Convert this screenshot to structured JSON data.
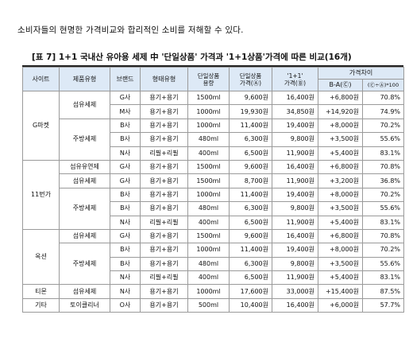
{
  "intro_text": "소비자들의 현명한 가격비교와 합리적인 소비를 저해할 수 있다.",
  "table_title": "[표 7] 1+1 국내산 유아용 세제 中 '단일상품' 가격과 '1+1상품'가격에 따른 비교(16개)",
  "headers": {
    "site": "사이트",
    "product_type": "제품유형",
    "brand": "브랜드",
    "form_type": "형태유형",
    "single_a": "단일상품",
    "single_b": "용량",
    "single_price_a": "단일상품",
    "single_price_b": "가격(Ⓐ)",
    "bundle_price_a": "'1+1'",
    "bundle_price_b": "가격(Ⓑ)",
    "diff": "가격차이",
    "diff_ba": "B-A(Ⓒ)",
    "diff_pct": "(Ⓒ÷Ⓐ)*100"
  },
  "sites": [
    "G마켓",
    "11번가",
    "옥션",
    "티몬",
    "기타"
  ],
  "product_types": [
    "섬유세제",
    "주방세제",
    "섬유유연제",
    "섬유세제",
    "주방세제",
    "섬유세제",
    "주방세제",
    "섬유세제",
    "토이클리너"
  ],
  "rows": [
    {
      "brand": "G사",
      "form": "용기+용기",
      "volume": "1500ml",
      "single": "9,600원",
      "bundle": "16,400원",
      "diff": "+6,800원",
      "pct": "70.8%"
    },
    {
      "brand": "M사",
      "form": "용기+용기",
      "volume": "1000ml",
      "single": "19,930원",
      "bundle": "34,850원",
      "diff": "+14,920원",
      "pct": "74.9%"
    },
    {
      "brand": "B사",
      "form": "용기+용기",
      "volume": "1000ml",
      "single": "11,400원",
      "bundle": "19,400원",
      "diff": "+8,000원",
      "pct": "70.2%"
    },
    {
      "brand": "B사",
      "form": "용기+용기",
      "volume": "480ml",
      "single": "6,300원",
      "bundle": "9,800원",
      "diff": "+3,500원",
      "pct": "55.6%"
    },
    {
      "brand": "N사",
      "form": "리필+리필",
      "volume": "400ml",
      "single": "6,500원",
      "bundle": "11,900원",
      "diff": "+5,400원",
      "pct": "83.1%"
    },
    {
      "brand": "G사",
      "form": "용기+용기",
      "volume": "1500ml",
      "single": "9,600원",
      "bundle": "16,400원",
      "diff": "+6,800원",
      "pct": "70.8%"
    },
    {
      "brand": "G사",
      "form": "용기+용기",
      "volume": "1500ml",
      "single": "8,700원",
      "bundle": "11,900원",
      "diff": "+3,200원",
      "pct": "36.8%"
    },
    {
      "brand": "B사",
      "form": "용기+용기",
      "volume": "1000ml",
      "single": "11,400원",
      "bundle": "19,400원",
      "diff": "+8,000원",
      "pct": "70.2%"
    },
    {
      "brand": "B사",
      "form": "용기+용기",
      "volume": "480ml",
      "single": "6,300원",
      "bundle": "9,800원",
      "diff": "+3,500원",
      "pct": "55.6%"
    },
    {
      "brand": "N사",
      "form": "리필+리필",
      "volume": "400ml",
      "single": "6,500원",
      "bundle": "11,900원",
      "diff": "+5,400원",
      "pct": "83.1%"
    },
    {
      "brand": "G사",
      "form": "용기+용기",
      "volume": "1500ml",
      "single": "9,600원",
      "bundle": "16,400원",
      "diff": "+6,800원",
      "pct": "70.8%"
    },
    {
      "brand": "B사",
      "form": "용기+용기",
      "volume": "1000ml",
      "single": "11,400원",
      "bundle": "19,400원",
      "diff": "+8,000원",
      "pct": "70.2%"
    },
    {
      "brand": "B사",
      "form": "용기+용기",
      "volume": "480ml",
      "single": "6,300원",
      "bundle": "9,800원",
      "diff": "+3,500원",
      "pct": "55.6%"
    },
    {
      "brand": "N사",
      "form": "리필+리필",
      "volume": "400ml",
      "single": "6,500원",
      "bundle": "11,900원",
      "diff": "+5,400원",
      "pct": "83.1%"
    },
    {
      "brand": "N사",
      "form": "용기+용기",
      "volume": "1000ml",
      "single": "17,600원",
      "bundle": "33,000원",
      "diff": "+15,400원",
      "pct": "87.5%"
    },
    {
      "brand": "O사",
      "form": "용기+용기",
      "volume": "500ml",
      "single": "10,400원",
      "bundle": "16,400원",
      "diff": "+6,000원",
      "pct": "57.7%"
    }
  ]
}
